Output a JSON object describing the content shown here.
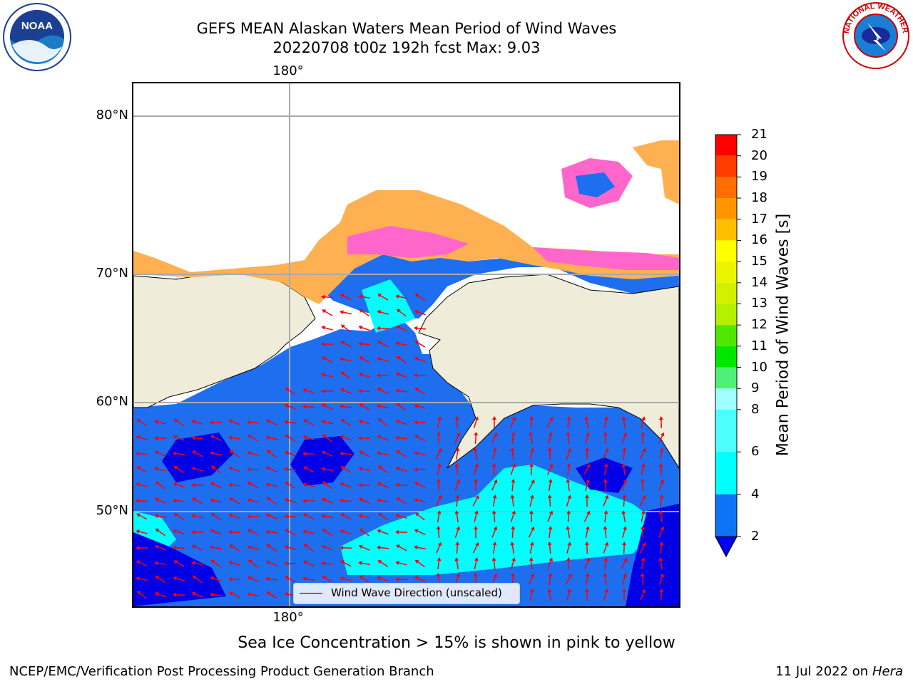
{
  "title": {
    "line1": "GEFS MEAN Alaskan Waters Mean Period of Wind Waves",
    "line2": "20220708 t00z 192h fcst   Max: 9.03"
  },
  "map": {
    "lon_labels": [
      "180°",
      "180°"
    ],
    "lat_labels": [
      "80°N",
      "70°N",
      "60°N",
      "50°N"
    ],
    "legend_label": "Wind Wave Direction (unscaled)",
    "colors": {
      "land": "#efedda",
      "ocean_low": "#1e6ef0",
      "ocean_deep": "#0000e6",
      "ocean_mid": "#00ffff",
      "ice_pink": "#ff66cc",
      "ice_orange": "#ffb050",
      "arrow": "#ff0000",
      "grid": "#aaaaaa"
    }
  },
  "colorbar": {
    "label": "Mean Period of Wind Waves [s]",
    "ticks": [
      "21",
      "20",
      "19",
      "18",
      "17",
      "16",
      "15",
      "14",
      "13",
      "12",
      "11",
      "10",
      "9",
      "8",
      "6",
      "4",
      "2"
    ],
    "bins": [
      {
        "from": 2,
        "to": 4,
        "color": "#0f73f5"
      },
      {
        "from": 4,
        "to": 6,
        "color": "#00ffff"
      },
      {
        "from": 6,
        "to": 8,
        "color": "#4bffff"
      },
      {
        "from": 8,
        "to": 9,
        "color": "#a0ffff"
      },
      {
        "from": 9,
        "to": 10,
        "color": "#50f078"
      },
      {
        "from": 10,
        "to": 11,
        "color": "#00e600"
      },
      {
        "from": 11,
        "to": 12,
        "color": "#50e600"
      },
      {
        "from": 12,
        "to": 13,
        "color": "#b4f000"
      },
      {
        "from": 13,
        "to": 14,
        "color": "#d2f000"
      },
      {
        "from": 14,
        "to": 15,
        "color": "#ebf500"
      },
      {
        "from": 15,
        "to": 16,
        "color": "#ffff00"
      },
      {
        "from": 16,
        "to": 17,
        "color": "#ffbe00"
      },
      {
        "from": 17,
        "to": 18,
        "color": "#ff9600"
      },
      {
        "from": 18,
        "to": 19,
        "color": "#ff6e00"
      },
      {
        "from": 19,
        "to": 20,
        "color": "#ff3c00"
      },
      {
        "from": 20,
        "to": 21,
        "color": "#ff0000"
      }
    ],
    "under_color": "#0000ff"
  },
  "footer": {
    "note": "Sea Ice Concentration > 15% is shown in pink to yellow",
    "left": "NCEP/EMC/Verification Post Processing Product Generation Branch",
    "right_date": "11 Jul 2022 on ",
    "right_host": "Hera"
  },
  "logos": {
    "left": "NOAA",
    "right": "NATIONAL WEATHER SERVICE"
  }
}
